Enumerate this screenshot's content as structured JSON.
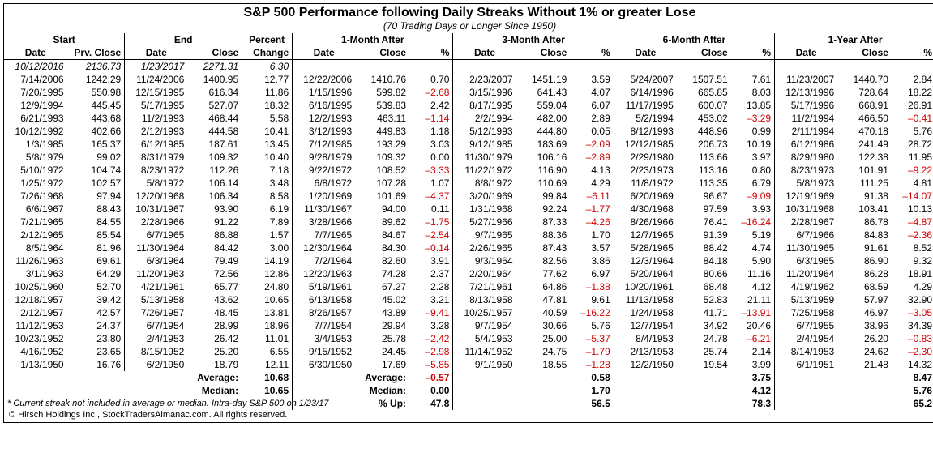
{
  "title": "S&P 500 Performance following Daily Streaks Without 1% or greater Lose",
  "subtitle": "(70 Trading Days or Longer Since 1950)",
  "group_headers": [
    "Start",
    "End",
    "Percent",
    "1-Month After",
    "3-Month After",
    "6-Month After",
    "1-Year After"
  ],
  "col_headers": {
    "start_date": "Date",
    "start_close": "Prv. Close",
    "end_date": "Date",
    "end_close": "Close",
    "pct_change": "Change",
    "m1_date": "Date",
    "m1_close": "Close",
    "m1_pct": "%",
    "m3_date": "Date",
    "m3_close": "Close",
    "m3_pct": "%",
    "m6_date": "Date",
    "m6_close": "Close",
    "m6_pct": "%",
    "y1_date": "Date",
    "y1_close": "Close",
    "y1_pct": "%"
  },
  "rows": [
    {
      "sd": "10/12/2016",
      "sc": "2136.73",
      "ed": "1/23/2017",
      "ec": "2271.31",
      "pc": "6.30",
      "ital": true
    },
    {
      "sd": "7/14/2006",
      "sc": "1242.29",
      "ed": "11/24/2006",
      "ec": "1400.95",
      "pc": "12.77",
      "m1d": "12/22/2006",
      "m1c": "1410.76",
      "m1p": "0.70",
      "m3d": "2/23/2007",
      "m3c": "1451.19",
      "m3p": "3.59",
      "m6d": "5/24/2007",
      "m6c": "1507.51",
      "m6p": "7.61",
      "y1d": "11/23/2007",
      "y1c": "1440.70",
      "y1p": "2.84"
    },
    {
      "sd": "7/20/1995",
      "sc": "550.98",
      "ed": "12/15/1995",
      "ec": "616.34",
      "pc": "11.86",
      "m1d": "1/15/1996",
      "m1c": "599.82",
      "m1p": "–2.68",
      "m3d": "3/15/1996",
      "m3c": "641.43",
      "m3p": "4.07",
      "m6d": "6/14/1996",
      "m6c": "665.85",
      "m6p": "8.03",
      "y1d": "12/13/1996",
      "y1c": "728.64",
      "y1p": "18.22"
    },
    {
      "sd": "12/9/1994",
      "sc": "445.45",
      "ed": "5/17/1995",
      "ec": "527.07",
      "pc": "18.32",
      "m1d": "6/16/1995",
      "m1c": "539.83",
      "m1p": "2.42",
      "m3d": "8/17/1995",
      "m3c": "559.04",
      "m3p": "6.07",
      "m6d": "11/17/1995",
      "m6c": "600.07",
      "m6p": "13.85",
      "y1d": "5/17/1996",
      "y1c": "668.91",
      "y1p": "26.91"
    },
    {
      "sd": "6/21/1993",
      "sc": "443.68",
      "ed": "11/2/1993",
      "ec": "468.44",
      "pc": "5.58",
      "m1d": "12/2/1993",
      "m1c": "463.11",
      "m1p": "–1.14",
      "m3d": "2/2/1994",
      "m3c": "482.00",
      "m3p": "2.89",
      "m6d": "5/2/1994",
      "m6c": "453.02",
      "m6p": "–3.29",
      "y1d": "11/2/1994",
      "y1c": "466.50",
      "y1p": "–0.41"
    },
    {
      "sd": "10/12/1992",
      "sc": "402.66",
      "ed": "2/12/1993",
      "ec": "444.58",
      "pc": "10.41",
      "m1d": "3/12/1993",
      "m1c": "449.83",
      "m1p": "1.18",
      "m3d": "5/12/1993",
      "m3c": "444.80",
      "m3p": "0.05",
      "m6d": "8/12/1993",
      "m6c": "448.96",
      "m6p": "0.99",
      "y1d": "2/11/1994",
      "y1c": "470.18",
      "y1p": "5.76"
    },
    {
      "sd": "1/3/1985",
      "sc": "165.37",
      "ed": "6/12/1985",
      "ec": "187.61",
      "pc": "13.45",
      "m1d": "7/12/1985",
      "m1c": "193.29",
      "m1p": "3.03",
      "m3d": "9/12/1985",
      "m3c": "183.69",
      "m3p": "–2.09",
      "m6d": "12/12/1985",
      "m6c": "206.73",
      "m6p": "10.19",
      "y1d": "6/12/1986",
      "y1c": "241.49",
      "y1p": "28.72"
    },
    {
      "sd": "5/8/1979",
      "sc": "99.02",
      "ed": "8/31/1979",
      "ec": "109.32",
      "pc": "10.40",
      "m1d": "9/28/1979",
      "m1c": "109.32",
      "m1p": "0.00",
      "m3d": "11/30/1979",
      "m3c": "106.16",
      "m3p": "–2.89",
      "m6d": "2/29/1980",
      "m6c": "113.66",
      "m6p": "3.97",
      "y1d": "8/29/1980",
      "y1c": "122.38",
      "y1p": "11.95"
    },
    {
      "sd": "5/10/1972",
      "sc": "104.74",
      "ed": "8/23/1972",
      "ec": "112.26",
      "pc": "7.18",
      "m1d": "9/22/1972",
      "m1c": "108.52",
      "m1p": "–3.33",
      "m3d": "11/22/1972",
      "m3c": "116.90",
      "m3p": "4.13",
      "m6d": "2/23/1973",
      "m6c": "113.16",
      "m6p": "0.80",
      "y1d": "8/23/1973",
      "y1c": "101.91",
      "y1p": "–9.22"
    },
    {
      "sd": "1/25/1972",
      "sc": "102.57",
      "ed": "5/8/1972",
      "ec": "106.14",
      "pc": "3.48",
      "m1d": "6/8/1972",
      "m1c": "107.28",
      "m1p": "1.07",
      "m3d": "8/8/1972",
      "m3c": "110.69",
      "m3p": "4.29",
      "m6d": "11/8/1972",
      "m6c": "113.35",
      "m6p": "6.79",
      "y1d": "5/8/1973",
      "y1c": "111.25",
      "y1p": "4.81"
    },
    {
      "sd": "7/26/1968",
      "sc": "97.94",
      "ed": "12/20/1968",
      "ec": "106.34",
      "pc": "8.58",
      "m1d": "1/20/1969",
      "m1c": "101.69",
      "m1p": "–4.37",
      "m3d": "3/20/1969",
      "m3c": "99.84",
      "m3p": "–6.11",
      "m6d": "6/20/1969",
      "m6c": "96.67",
      "m6p": "–9.09",
      "y1d": "12/19/1969",
      "y1c": "91.38",
      "y1p": "–14.07"
    },
    {
      "sd": "6/6/1967",
      "sc": "88.43",
      "ed": "10/31/1967",
      "ec": "93.90",
      "pc": "6.19",
      "m1d": "11/30/1967",
      "m1c": "94.00",
      "m1p": "0.11",
      "m3d": "1/31/1968",
      "m3c": "92.24",
      "m3p": "–1.77",
      "m6d": "4/30/1968",
      "m6c": "97.59",
      "m6p": "3.93",
      "y1d": "10/31/1968",
      "y1c": "103.41",
      "y1p": "10.13"
    },
    {
      "sd": "7/21/1965",
      "sc": "84.55",
      "ed": "2/28/1966",
      "ec": "91.22",
      "pc": "7.89",
      "m1d": "3/28/1966",
      "m1c": "89.62",
      "m1p": "–1.75",
      "m3d": "5/27/1966",
      "m3c": "87.33",
      "m3p": "–4.26",
      "m6d": "8/26/1966",
      "m6c": "76.41",
      "m6p": "–16.24",
      "y1d": "2/28/1967",
      "y1c": "86.78",
      "y1p": "–4.87"
    },
    {
      "sd": "2/12/1965",
      "sc": "85.54",
      "ed": "6/7/1965",
      "ec": "86.88",
      "pc": "1.57",
      "m1d": "7/7/1965",
      "m1c": "84.67",
      "m1p": "–2.54",
      "m3d": "9/7/1965",
      "m3c": "88.36",
      "m3p": "1.70",
      "m6d": "12/7/1965",
      "m6c": "91.39",
      "m6p": "5.19",
      "y1d": "6/7/1966",
      "y1c": "84.83",
      "y1p": "–2.36"
    },
    {
      "sd": "8/5/1964",
      "sc": "81.96",
      "ed": "11/30/1964",
      "ec": "84.42",
      "pc": "3.00",
      "m1d": "12/30/1964",
      "m1c": "84.30",
      "m1p": "–0.14",
      "m3d": "2/26/1965",
      "m3c": "87.43",
      "m3p": "3.57",
      "m6d": "5/28/1965",
      "m6c": "88.42",
      "m6p": "4.74",
      "y1d": "11/30/1965",
      "y1c": "91.61",
      "y1p": "8.52"
    },
    {
      "sd": "11/26/1963",
      "sc": "69.61",
      "ed": "6/3/1964",
      "ec": "79.49",
      "pc": "14.19",
      "m1d": "7/2/1964",
      "m1c": "82.60",
      "m1p": "3.91",
      "m3d": "9/3/1964",
      "m3c": "82.56",
      "m3p": "3.86",
      "m6d": "12/3/1964",
      "m6c": "84.18",
      "m6p": "5.90",
      "y1d": "6/3/1965",
      "y1c": "86.90",
      "y1p": "9.32"
    },
    {
      "sd": "3/1/1963",
      "sc": "64.29",
      "ed": "11/20/1963",
      "ec": "72.56",
      "pc": "12.86",
      "m1d": "12/20/1963",
      "m1c": "74.28",
      "m1p": "2.37",
      "m3d": "2/20/1964",
      "m3c": "77.62",
      "m3p": "6.97",
      "m6d": "5/20/1964",
      "m6c": "80.66",
      "m6p": "11.16",
      "y1d": "11/20/1964",
      "y1c": "86.28",
      "y1p": "18.91"
    },
    {
      "sd": "10/25/1960",
      "sc": "52.70",
      "ed": "4/21/1961",
      "ec": "65.77",
      "pc": "24.80",
      "m1d": "5/19/1961",
      "m1c": "67.27",
      "m1p": "2.28",
      "m3d": "7/21/1961",
      "m3c": "64.86",
      "m3p": "–1.38",
      "m6d": "10/20/1961",
      "m6c": "68.48",
      "m6p": "4.12",
      "y1d": "4/19/1962",
      "y1c": "68.59",
      "y1p": "4.29"
    },
    {
      "sd": "12/18/1957",
      "sc": "39.42",
      "ed": "5/13/1958",
      "ec": "43.62",
      "pc": "10.65",
      "m1d": "6/13/1958",
      "m1c": "45.02",
      "m1p": "3.21",
      "m3d": "8/13/1958",
      "m3c": "47.81",
      "m3p": "9.61",
      "m6d": "11/13/1958",
      "m6c": "52.83",
      "m6p": "21.11",
      "y1d": "5/13/1959",
      "y1c": "57.97",
      "y1p": "32.90"
    },
    {
      "sd": "2/12/1957",
      "sc": "42.57",
      "ed": "7/26/1957",
      "ec": "48.45",
      "pc": "13.81",
      "m1d": "8/26/1957",
      "m1c": "43.89",
      "m1p": "–9.41",
      "m3d": "10/25/1957",
      "m3c": "40.59",
      "m3p": "–16.22",
      "m6d": "1/24/1958",
      "m6c": "41.71",
      "m6p": "–13.91",
      "y1d": "7/25/1958",
      "y1c": "46.97",
      "y1p": "–3.05"
    },
    {
      "sd": "11/12/1953",
      "sc": "24.37",
      "ed": "6/7/1954",
      "ec": "28.99",
      "pc": "18.96",
      "m1d": "7/7/1954",
      "m1c": "29.94",
      "m1p": "3.28",
      "m3d": "9/7/1954",
      "m3c": "30.66",
      "m3p": "5.76",
      "m6d": "12/7/1954",
      "m6c": "34.92",
      "m6p": "20.46",
      "y1d": "6/7/1955",
      "y1c": "38.96",
      "y1p": "34.39"
    },
    {
      "sd": "10/23/1952",
      "sc": "23.80",
      "ed": "2/4/1953",
      "ec": "26.42",
      "pc": "11.01",
      "m1d": "3/4/1953",
      "m1c": "25.78",
      "m1p": "–2.42",
      "m3d": "5/4/1953",
      "m3c": "25.00",
      "m3p": "–5.37",
      "m6d": "8/4/1953",
      "m6c": "24.78",
      "m6p": "–6.21",
      "y1d": "2/4/1954",
      "y1c": "26.20",
      "y1p": "–0.83"
    },
    {
      "sd": "4/16/1952",
      "sc": "23.65",
      "ed": "8/15/1952",
      "ec": "25.20",
      "pc": "6.55",
      "m1d": "9/15/1952",
      "m1c": "24.45",
      "m1p": "–2.98",
      "m3d": "11/14/1952",
      "m3c": "24.75",
      "m3p": "–1.79",
      "m6d": "2/13/1953",
      "m6c": "25.74",
      "m6p": "2.14",
      "y1d": "8/14/1953",
      "y1c": "24.62",
      "y1p": "–2.30"
    },
    {
      "sd": "1/13/1950",
      "sc": "16.76",
      "ed": "6/2/1950",
      "ec": "18.79",
      "pc": "12.11",
      "m1d": "6/30/1950",
      "m1c": "17.69",
      "m1p": "–5.85",
      "m3d": "9/1/1950",
      "m3c": "18.55",
      "m3p": "–1.28",
      "m6d": "12/2/1950",
      "m6c": "19.54",
      "m6p": "3.99",
      "y1d": "6/1/1951",
      "y1c": "21.48",
      "y1p": "14.32"
    }
  ],
  "summary": {
    "avg_label": "Average:",
    "med_label": "Median:",
    "pctup_label": "% Up:",
    "pc_avg": "10.68",
    "pc_med": "10.65",
    "m1_avg": "–0.57",
    "m1_med": "0.00",
    "m1_up": "47.8",
    "m3_avg": "0.58",
    "m3_med": "1.70",
    "m3_up": "56.5",
    "m6_avg": "3.75",
    "m6_med": "4.12",
    "m6_up": "78.3",
    "y1_avg": "8.47",
    "y1_med": "5.76",
    "y1_up": "65.2"
  },
  "footnote": "* Current streak not included in average or median. Intra-day S&P 500 on 1/23/17",
  "copyright": "© Hirsch Holdings Inc., StockTradersAlmanac.com. All rights reserved."
}
